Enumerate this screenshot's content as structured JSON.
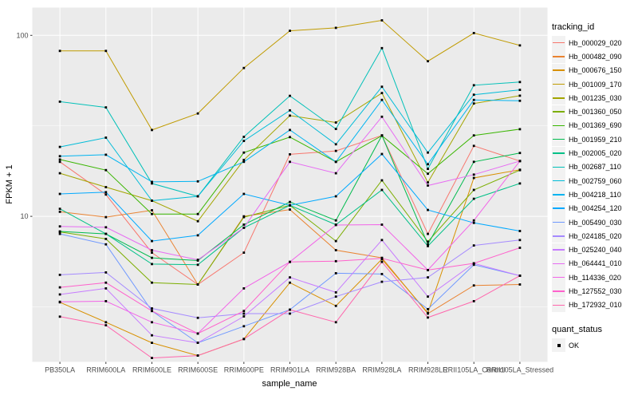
{
  "chart_data": {
    "type": "line",
    "title": "",
    "xlabel": "sample_name",
    "ylabel": "FPKM + 1",
    "y_scale": "log10",
    "y_tick_labels": [
      "100",
      "10"
    ],
    "y_ticks": [
      100,
      10
    ],
    "y_minor_ticks": [
      31.62,
      3.162
    ],
    "ylim": [
      1.58,
      142
    ],
    "grid": "on",
    "legend_position": "right",
    "categories": [
      "PB350LA",
      "RRIM600LA",
      "RRIM600LE",
      "RRIM600SE",
      "RRIM600PE",
      "RRIM901LA",
      "RRIM928BA",
      "RRIM928LA",
      "RRIM928LE",
      "RRII105LA_Control",
      "RRII105LA_Stressed"
    ],
    "series": [
      {
        "name": "Hb_000029_020",
        "color": "#F8766D",
        "values": [
          20,
          13.2,
          6.3,
          4.2,
          6.3,
          22,
          23,
          28,
          8.0,
          24.5,
          20.2
        ]
      },
      {
        "name": "Hb_000482_090",
        "color": "#EA8331",
        "values": [
          10.6,
          9.9,
          10.8,
          4.2,
          10.0,
          10.9,
          6.5,
          5.9,
          2.9,
          4.15,
          4.2
        ]
      },
      {
        "name": "Hb_000676_150",
        "color": "#D89000",
        "values": [
          3.35,
          2.6,
          2.0,
          1.7,
          2.1,
          4.3,
          3.2,
          5.8,
          2.93,
          16.3,
          18.1
        ]
      },
      {
        "name": "Hb_001009_170",
        "color": "#C09B00",
        "values": [
          82,
          82,
          30,
          37,
          66,
          106,
          110,
          121,
          72,
          103,
          88
        ]
      },
      {
        "name": "Hb_001235_030",
        "color": "#A3A500",
        "values": [
          17.3,
          14.5,
          12.2,
          9.4,
          20.5,
          36,
          33,
          48,
          15.4,
          42,
          46.4
        ]
      },
      {
        "name": "Hb_001360_050",
        "color": "#7CAE00",
        "values": [
          8.2,
          7.5,
          4.3,
          4.2,
          9.9,
          11.5,
          7.3,
          15.8,
          7.25,
          14,
          18
        ]
      },
      {
        "name": "Hb_001369_690",
        "color": "#39B600",
        "values": [
          20.6,
          18,
          10.3,
          10.3,
          22.5,
          27.4,
          20,
          27.9,
          17.2,
          28,
          30.3
        ]
      },
      {
        "name": "Hb_001959_210",
        "color": "#00BB4E",
        "values": [
          8.25,
          8.0,
          5.9,
          5.7,
          9.0,
          12.0,
          9.5,
          28,
          7.0,
          20,
          22.4
        ]
      },
      {
        "name": "Hb_002005_020",
        "color": "#00C087",
        "values": [
          11.0,
          8.0,
          5.45,
          5.4,
          8.65,
          11.5,
          9.0,
          14.0,
          6.85,
          12.5,
          15.2
        ]
      },
      {
        "name": "Hb_002687_110",
        "color": "#00C0B8",
        "values": [
          43,
          40,
          15.2,
          12.9,
          27.5,
          46.3,
          30.4,
          85,
          18.3,
          53,
          55.2
        ]
      },
      {
        "name": "Hb_002759_060",
        "color": "#00BCD8",
        "values": [
          24.2,
          27.2,
          12.2,
          12.9,
          26.1,
          38.5,
          25,
          52,
          22.5,
          47,
          50
        ]
      },
      {
        "name": "Hb_004218_110",
        "color": "#00B4F0",
        "values": [
          21.5,
          21.9,
          15.5,
          15.6,
          20,
          30,
          20,
          44,
          19.4,
          44,
          43.5
        ]
      },
      {
        "name": "Hb_004254_120",
        "color": "#00A9FF",
        "values": [
          13.3,
          13.6,
          7.3,
          7.85,
          13.3,
          11.5,
          12.9,
          22.1,
          10.85,
          9.2,
          8.3
        ]
      },
      {
        "name": "Hb_005490_030",
        "color": "#7099FF",
        "values": [
          8.0,
          7.0,
          3.0,
          2.0,
          2.47,
          3.05,
          4.85,
          4.8,
          3.07,
          5.4,
          4.7
        ]
      },
      {
        "name": "Hb_024185_020",
        "color": "#A58AFF",
        "values": [
          4.75,
          4.9,
          3.1,
          2.75,
          2.9,
          2.9,
          3.6,
          4.35,
          4.6,
          6.9,
          7.4
        ]
      },
      {
        "name": "Hb_025240_040",
        "color": "#C77CFF",
        "values": [
          3.7,
          4.0,
          2.2,
          2.0,
          2.8,
          4.6,
          3.8,
          7.4,
          3.6,
          5.5,
          4.7
        ]
      },
      {
        "name": "Hb_064441_010",
        "color": "#E76BF3",
        "values": [
          8.8,
          8.7,
          6.5,
          5.75,
          8.65,
          20,
          17.3,
          35.5,
          14.8,
          17,
          20.2
        ]
      },
      {
        "name": "Hb_114336_020",
        "color": "#F265E8",
        "values": [
          3.37,
          3.4,
          2.6,
          2.25,
          4.0,
          5.6,
          8.95,
          9.0,
          5.05,
          9.5,
          20.2
        ]
      },
      {
        "name": "Hb_127552_030",
        "color": "#FF61CC",
        "values": [
          4.05,
          4.3,
          3.0,
          2.25,
          3.0,
          5.6,
          5.65,
          5.86,
          5.05,
          5.5,
          6.7
        ]
      },
      {
        "name": "Hb_172932_010",
        "color": "#FF65AC",
        "values": [
          2.79,
          2.5,
          1.65,
          1.7,
          2.1,
          3.05,
          2.6,
          5.6,
          2.76,
          3.4,
          4.7
        ]
      }
    ],
    "point_shape": "square",
    "point_color": "#000000"
  },
  "legend": {
    "series_title": "tracking_id",
    "quant_title": "quant_status",
    "quant_label": "OK"
  },
  "style": {
    "panel_bg": "#EBEBEB",
    "grid_color": "#FFFFFF",
    "tick_color": "#333333",
    "tick_text_color": "#4D4D4D"
  }
}
